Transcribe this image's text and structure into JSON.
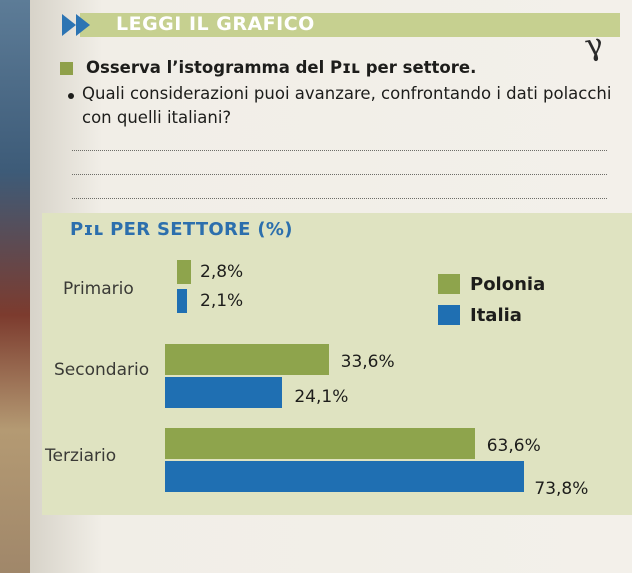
{
  "header": {
    "title": "LEGGI IL GRAFICO"
  },
  "instruction": {
    "text": "Osserva l’istogramma del Pɪʟ per settore.",
    "question": "Quali considerazioni puoi avanzare, confrontando i dati polacchi con quelli italiani?"
  },
  "colors": {
    "polonia": "#8ea44c",
    "italia": "#1f6fb2",
    "panel": "#dfe3c1",
    "title": "#2c6fad"
  },
  "chart_data": {
    "type": "bar",
    "orientation": "horizontal",
    "title": "Pɪʟ PER SETTORE (%)",
    "categories": [
      "Primario",
      "Secondario",
      "Terziario"
    ],
    "series": [
      {
        "name": "Polonia",
        "values": [
          2.8,
          33.6,
          63.6
        ],
        "labels": [
          "2,8%",
          "33,6%",
          "63,6%"
        ]
      },
      {
        "name": "Italia",
        "values": [
          2.1,
          24.1,
          73.8
        ],
        "labels": [
          "2,1%",
          "24,1%",
          "73,8%"
        ]
      }
    ],
    "legend_position": "top-right",
    "grid": false
  }
}
